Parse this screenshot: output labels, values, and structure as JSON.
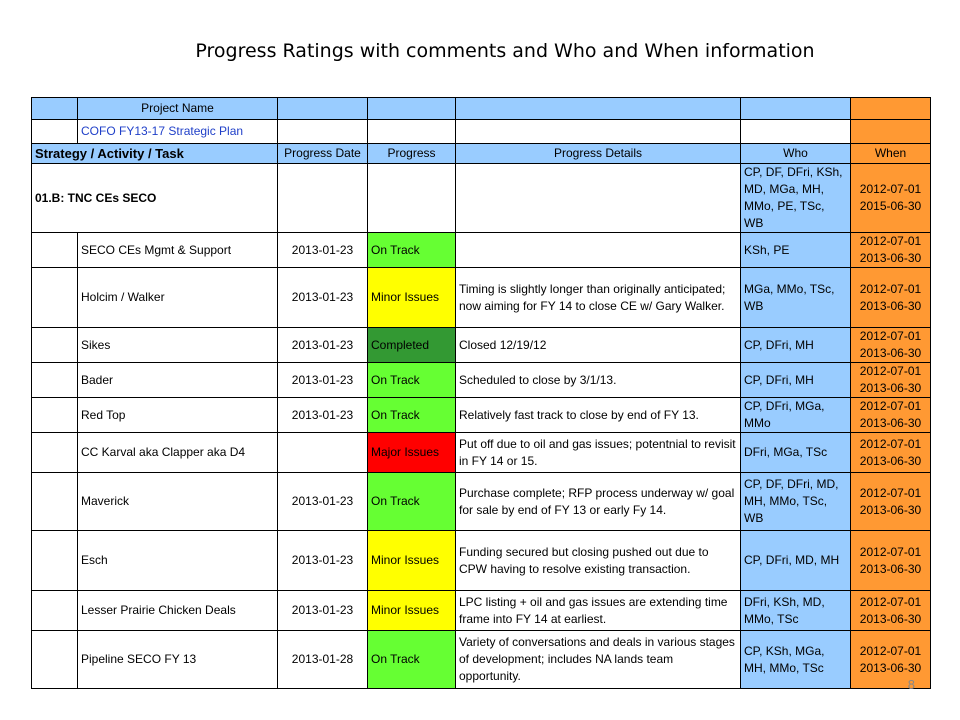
{
  "title": "Progress Ratings with comments and Who and When information",
  "header": {
    "project_name_label": "Project Name",
    "plan_name": "COFO FY13-17 Strategic Plan"
  },
  "columns": {
    "strategy": "Strategy / Activity / Task",
    "progress_date": "Progress Date",
    "progress": "Progress",
    "progress_details": "Progress Details",
    "who": "Who",
    "when": "When"
  },
  "group": {
    "name": "01.B: TNC CEs SECO",
    "who": "CP, DF, DFri, KSh, MD, MGa, MH, MMo, PE, TSc, WB",
    "when_start": "2012-07-01",
    "when_end": "2015-06-30"
  },
  "rows": [
    {
      "name": "SECO CEs Mgmt & Support",
      "date": "2013-01-23",
      "status": "On Track",
      "details": "",
      "who": "KSh, PE",
      "when_start": "2012-07-01",
      "when_end": "2013-06-30"
    },
    {
      "name": "Holcim / Walker",
      "date": "2013-01-23",
      "status": "Minor Issues",
      "details": "Timing is slightly longer than originally anticipated; now aiming for FY 14 to close CE w/ Gary Walker.",
      "who": "MGa, MMo, TSc, WB",
      "when_start": "2012-07-01",
      "when_end": "2013-06-30"
    },
    {
      "name": "Sikes",
      "date": "2013-01-23",
      "status": "Completed",
      "details": "Closed 12/19/12",
      "who": "CP, DFri, MH",
      "when_start": "2012-07-01",
      "when_end": "2013-06-30"
    },
    {
      "name": "Bader",
      "date": "2013-01-23",
      "status": "On Track",
      "details": "Scheduled to close by 3/1/13.",
      "who": "CP, DFri, MH",
      "when_start": "2012-07-01",
      "when_end": "2013-06-30"
    },
    {
      "name": "Red Top",
      "date": "2013-01-23",
      "status": "On Track",
      "details": "Relatively fast track to close by end of FY 13.",
      "who": "CP, DFri, MGa, MMo",
      "when_start": "2012-07-01",
      "when_end": "2013-06-30"
    },
    {
      "name": "CC Karval aka Clapper aka D4",
      "date": "",
      "status": "Major Issues",
      "details": "Put off due to oil and gas issues; potentnial to revisit in FY 14 or 15.",
      "who": "DFri, MGa, TSc",
      "when_start": "2012-07-01",
      "when_end": "2013-06-30"
    },
    {
      "name": "Maverick",
      "date": "2013-01-23",
      "status": "On Track",
      "details": "Purchase complete; RFP process underway w/ goal for sale by end of FY 13 or early Fy 14.",
      "who": "CP, DF, DFri, MD, MH, MMo, TSc, WB",
      "when_start": "2012-07-01",
      "when_end": "2013-06-30"
    },
    {
      "name": "Esch",
      "date": "2013-01-23",
      "status": "Minor Issues",
      "details": "Funding secured but closing pushed out due to CPW having to resolve existing transaction.",
      "who": "CP, DFri, MD, MH",
      "when_start": "2012-07-01",
      "when_end": "2013-06-30"
    },
    {
      "name": "Lesser Prairie Chicken Deals",
      "date": "2013-01-23",
      "status": "Minor Issues",
      "details": "LPC listing + oil and gas issues are extending time frame into FY 14 at earliest.",
      "who": "DFri, KSh, MD, MMo, TSc",
      "when_start": "2012-07-01",
      "when_end": "2013-06-30"
    },
    {
      "name": "Pipeline SECO FY 13",
      "date": "2013-01-28",
      "status": "On Track",
      "details": "Variety of conversations and deals in various stages of development; includes NA lands team opportunity.",
      "who": "CP, KSh, MGa, MH, MMo, TSc",
      "when_start": "2012-07-01",
      "when_end": "2013-06-30"
    }
  ],
  "status_colors": {
    "On Track": "#66ff33",
    "Minor Issues": "#ffff00",
    "Completed": "#339933",
    "Major Issues": "#ff0000"
  },
  "page_number": "8"
}
